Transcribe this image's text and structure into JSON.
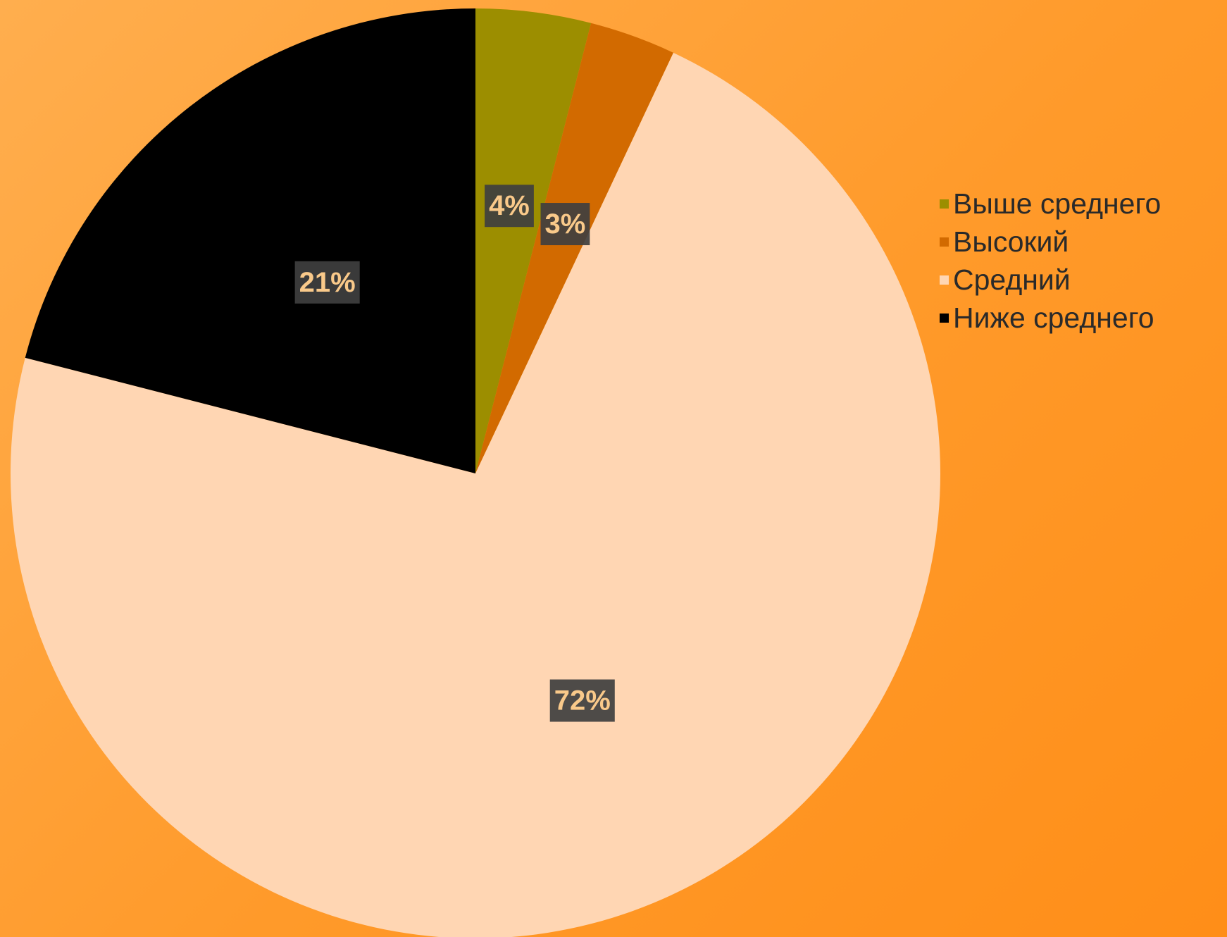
{
  "chart_data": {
    "type": "pie",
    "categories": [
      "Выше среднего",
      "Высокий",
      "Средний",
      "Ниже среднего"
    ],
    "values": [
      4,
      3,
      72,
      21
    ],
    "data_labels": [
      "4%",
      "3%",
      "72%",
      "21%"
    ],
    "colors": [
      "#9C8E00",
      "#D26A00",
      "#FFD6B3",
      "#000000"
    ],
    "start_angle": "12 o'clock",
    "direction": "clockwise",
    "legend": {
      "position": "right",
      "entries": [
        "Выше среднего",
        "Высокий",
        "Средний",
        "Ниже среднего"
      ]
    }
  }
}
